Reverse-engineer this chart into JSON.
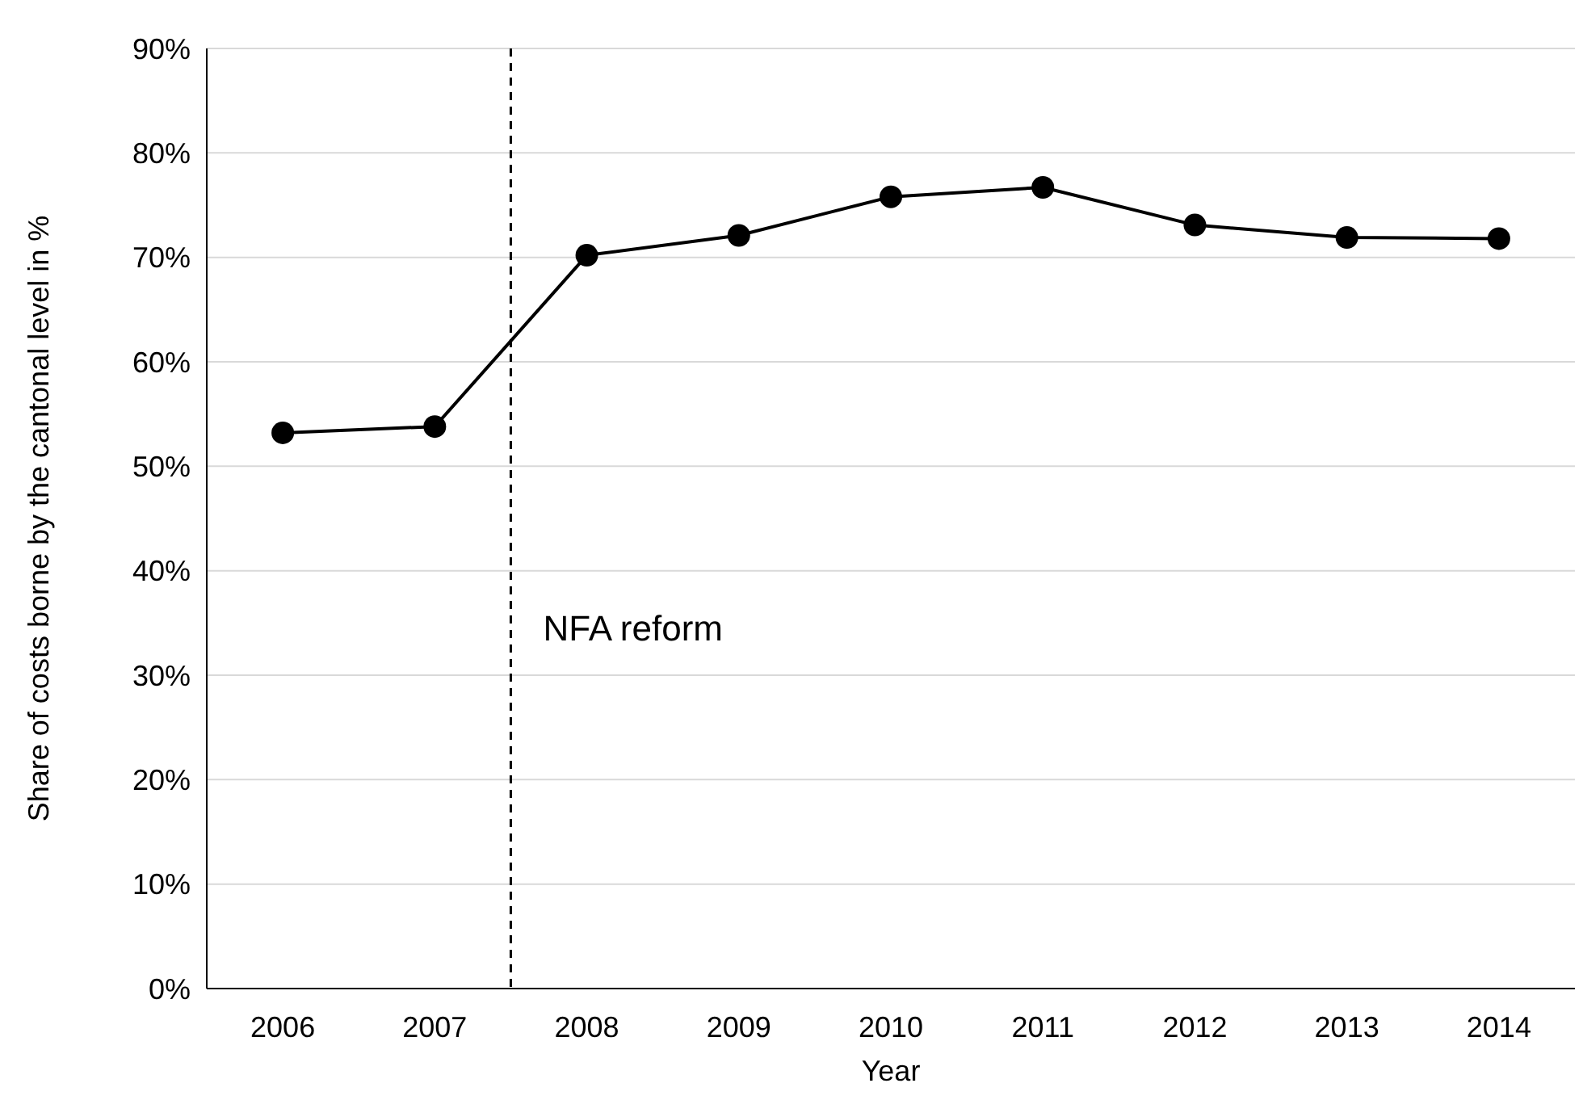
{
  "chart_data": {
    "type": "line",
    "xlabel": "Year",
    "ylabel": "Share of costs borne by the cantonal level in %",
    "x": [
      2006,
      2007,
      2008,
      2009,
      2010,
      2011,
      2012,
      2013,
      2014
    ],
    "series": [
      {
        "color": "#000000",
        "values": [
          53.2,
          53.8,
          70.2,
          72.1,
          75.8,
          76.7,
          73.1,
          71.9,
          71.8
        ]
      }
    ],
    "xlim": [
      2005.5,
      2014.5
    ],
    "xticks": [
      2006,
      2007,
      2008,
      2009,
      2010,
      2011,
      2012,
      2013,
      2014
    ],
    "ylim": [
      0,
      90
    ],
    "yticks": [
      {
        "value": 0,
        "label": "0%"
      },
      {
        "value": 10,
        "label": "10%"
      },
      {
        "value": 20,
        "label": "20%"
      },
      {
        "value": 30,
        "label": "30%"
      },
      {
        "value": 40,
        "label": "40%"
      },
      {
        "value": 50,
        "label": "50%"
      },
      {
        "value": 60,
        "label": "60%"
      },
      {
        "value": 70,
        "label": "70%"
      },
      {
        "value": 80,
        "label": "80%"
      },
      {
        "value": 90,
        "label": "90%"
      }
    ],
    "grid": "y",
    "marker": "circle",
    "line_style": "solid",
    "ref_lines": [
      {
        "axis": "x",
        "value": 2007.5,
        "label": "NFA reform",
        "color": "#000000",
        "line_style": "dashed"
      }
    ]
  }
}
